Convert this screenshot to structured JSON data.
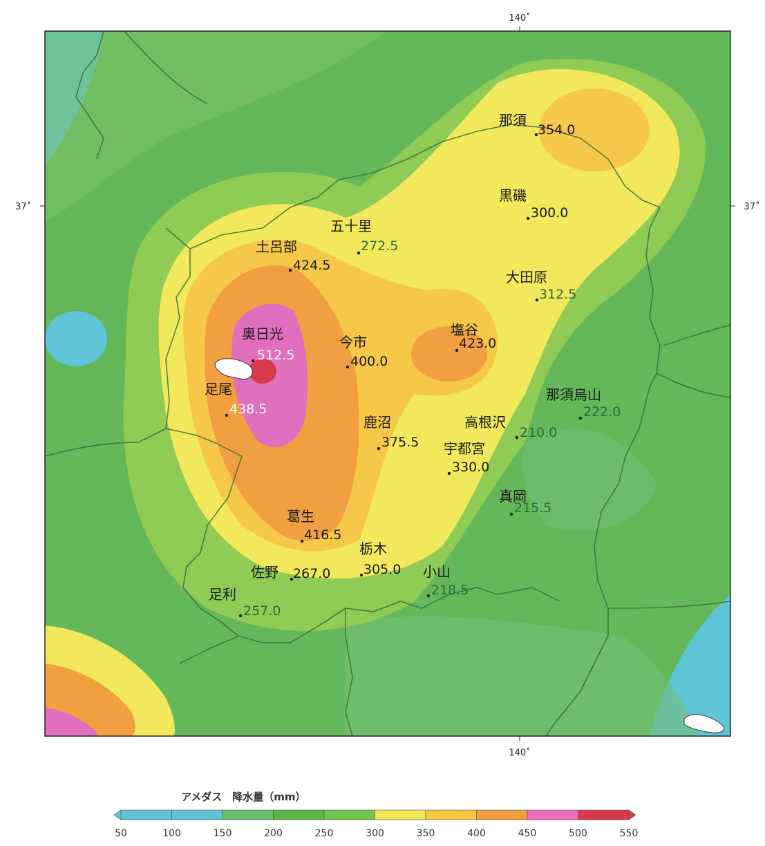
{
  "map": {
    "lon_label_top": "140˚",
    "lon_label_bottom": "140˚",
    "lat_label_left": "37˚",
    "lat_label_right": "37˚"
  },
  "stations": [
    {
      "id": "nasu",
      "name": "那須",
      "value": "354.0",
      "value_color": "#1a1a1a"
    },
    {
      "id": "kuroiso",
      "name": "黒磯",
      "value": "300.0",
      "value_color": "#1a1a1a"
    },
    {
      "id": "ikari",
      "name": "五十里",
      "value": "272.5",
      "value_color": "#2e6b3a"
    },
    {
      "id": "doroobu",
      "name": "土呂部",
      "value": "424.5",
      "value_color": "#1a1a1a"
    },
    {
      "id": "otawara",
      "name": "大田原",
      "value": "312.5",
      "value_color": "#2e6b3a"
    },
    {
      "id": "okunikko",
      "name": "奥日光",
      "value": "512.5",
      "value_color": "#ffffff"
    },
    {
      "id": "imaichi",
      "name": "今市",
      "value": "400.0",
      "value_color": "#1a1a1a"
    },
    {
      "id": "shioya",
      "name": "塩谷",
      "value": "423.0",
      "value_color": "#1a1a1a"
    },
    {
      "id": "ashio",
      "name": "足尾",
      "value": "438.5",
      "value_color": "#ffffff"
    },
    {
      "id": "nasukarasuyama",
      "name": "那須烏山",
      "value": "222.0",
      "value_color": "#2e6b3a"
    },
    {
      "id": "kanuma",
      "name": "鹿沼",
      "value": "375.5",
      "value_color": "#1a1a1a"
    },
    {
      "id": "takanezawa",
      "name": "高根沢",
      "value": "210.0",
      "value_color": "#2e6b3a"
    },
    {
      "id": "utsunomiya",
      "name": "宇都宮",
      "value": "330.0",
      "value_color": "#1a1a1a"
    },
    {
      "id": "moka",
      "name": "真岡",
      "value": "215.5",
      "value_color": "#2e6b3a"
    },
    {
      "id": "kuzuu",
      "name": "葛生",
      "value": "416.5",
      "value_color": "#1a1a1a"
    },
    {
      "id": "tochigi",
      "name": "栃木",
      "value": "305.0",
      "value_color": "#1a1a1a"
    },
    {
      "id": "sano",
      "name": "佐野",
      "value": "267.0",
      "value_color": "#1a1a1a"
    },
    {
      "id": "oyama",
      "name": "小山",
      "value": "218.5",
      "value_color": "#2e6b3a"
    },
    {
      "id": "ashikaga",
      "name": "足利",
      "value": "257.0",
      "value_color": "#2e6b3a"
    }
  ],
  "legend": {
    "title": "アメダス　降水量（mm）",
    "ticks": [
      "50",
      "100",
      "150",
      "200",
      "250",
      "300",
      "350",
      "400",
      "450",
      "500",
      "550"
    ],
    "colors": [
      "#5ec4d6",
      "#5ec4d6",
      "#6cbf6a",
      "#5cb548",
      "#76c24e",
      "#f0e858",
      "#f5c842",
      "#f0a040",
      "#e86fb8",
      "#d93a4a"
    ]
  }
}
